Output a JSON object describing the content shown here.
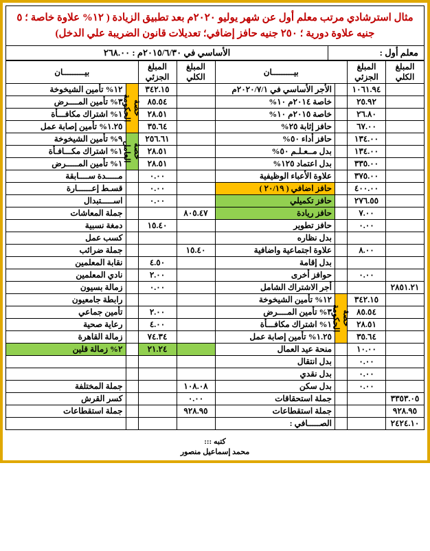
{
  "colors": {
    "frame": "#e0a800",
    "title_fg": "#c00000",
    "hl1": "#ffc000",
    "hl2": "#92d050"
  },
  "title": "مثال استرشادي مرتب معلم أول عن شهر يوليو ٢٠٢٠م بعد تطبيق الزيادة ( ١٢% علاوة خاصة ؛ ٥ جنيه علاوة دورية ؛ ٢٥٠ جنيه حافز إضافي؛ تعديلات قانون الضريبة علي الدخل)",
  "info": {
    "grade": "معلم أول :",
    "basic_label": "الأساسي في ٢٠١٥/٦/٣٠م : ٢٦٨.٠٠"
  },
  "headers": {
    "total": "المبلغ الكلي",
    "part": "المبلغ الجزئي",
    "desc": "بيـــــــــان"
  },
  "right_rows": [
    {
      "d": "الأجر الأساسي في ٢٠٢٠/٧/١م",
      "p": "١٠٦١.٩٤",
      "t": ""
    },
    {
      "d": "خاصة ٢٠١٤م ١٠%",
      "p": "٢٥.٩٢",
      "t": ""
    },
    {
      "d": "خاصة ٢٠١٥م ١٠%",
      "p": "٢٦.٨٠",
      "t": ""
    },
    {
      "d": "حافز إثابة ٢٥%",
      "p": "٦٧.٠٠",
      "t": ""
    },
    {
      "d": "حافز أداء ٥٠%",
      "p": "١٣٤.٠٠",
      "t": ""
    },
    {
      "d": "بدل مــعـلـم ٥٠%",
      "p": "١٣٤.٠٠",
      "t": ""
    },
    {
      "d": "بدل اعتماد ١٢٥%",
      "p": "٣٣٥.٠٠",
      "t": ""
    },
    {
      "d": "علاوة الأعباء الوظيفية",
      "p": "٣٧٥.٠٠",
      "t": ""
    },
    {
      "d": "حافز اضافي ( ٢٠/١٩ )",
      "p": "٤٠٠.٠٠",
      "t": "",
      "hl": "a"
    },
    {
      "d": "حافز تكميلي",
      "p": "٢٧٦.٥٥",
      "t": "",
      "hl": "b"
    },
    {
      "d": "حافز ريادة",
      "p": "٧.٠٠",
      "t": "",
      "hl": "b"
    },
    {
      "d": "حافز تطوير",
      "p": "٠.٠٠",
      "t": ""
    },
    {
      "d": "بدل نظاره",
      "p": "",
      "t": ""
    },
    {
      "d": "علاوة اجتماعية واضافية",
      "p": "٨.٠٠",
      "t": ""
    },
    {
      "d": "بدل إقامة",
      "p": "",
      "t": ""
    },
    {
      "d": "حوافز أخرى",
      "p": "٠.٠٠",
      "t": ""
    },
    {
      "d": "أجر الاشتراك الشامل",
      "p": "",
      "t": "٢٨٥١.٢١"
    },
    {
      "d": "١٢% تأمين الشيخوخة",
      "p": "٣٤٢.١٥",
      "t": "",
      "side": "a",
      "sideLabel": "حصة الحكومة",
      "sideSpan": 4
    },
    {
      "d": "٣% تأمين المــــرض",
      "p": "٨٥.٥٤",
      "t": ""
    },
    {
      "d": "١% اشتراك مكافـــأة",
      "p": "٢٨.٥١",
      "t": ""
    },
    {
      "d": "١.٢٥% تأمين إصابة عمل",
      "p": "٣٥.٦٤",
      "t": ""
    },
    {
      "d": "منحة عيد العمال",
      "p": "١٠.٠٠",
      "t": ""
    },
    {
      "d": "بدل انتقال",
      "p": "٠.٠٠",
      "t": ""
    },
    {
      "d": "بدل نقدي",
      "p": "٠.٠٠",
      "t": ""
    },
    {
      "d": "بدل سكن",
      "p": "٠.٠٠",
      "t": ""
    },
    {
      "d": "جملة استحقاقات",
      "p": "",
      "t": "٣٣٥٣.٠٥"
    },
    {
      "d": "جملة استقطاعات",
      "p": "",
      "t": "٩٢٨.٩٥"
    },
    {
      "d": "الصـــــافي :",
      "p": "",
      "t": "٢٤٢٤.١٠"
    }
  ],
  "left_rows": [
    {
      "d": "١٢% تأمين الشيخوخة",
      "p": "٣٤٢.١٥",
      "t": "",
      "side": "a",
      "sideLabel": "حصة الحكومة",
      "sideSpan": 4
    },
    {
      "d": "٣% تأمين المــــرض",
      "p": "٨٥.٥٤",
      "t": ""
    },
    {
      "d": "١% اشتراك مكافـــأة",
      "p": "٢٨.٥١",
      "t": ""
    },
    {
      "d": "١.٢٥% تأمين إصابة عمل",
      "p": "٣٥.٦٤",
      "t": ""
    },
    {
      "d": "٩% تأمين الشيخوخة",
      "p": "٢٥٦.٦١",
      "t": "",
      "side": "b",
      "sideLabel": "حصة العامل",
      "sideSpan": 3
    },
    {
      "d": "١% اشتراك مكـــافـأة",
      "p": "٢٨.٥١",
      "t": ""
    },
    {
      "d": "١% تأمين المـــــرض",
      "p": "٢٨.٥١",
      "t": ""
    },
    {
      "d": "مـــــدة ســــابقة",
      "p": "٠.٠٠",
      "t": ""
    },
    {
      "d": "قسـط إعــــــارة",
      "p": "٠.٠٠",
      "t": ""
    },
    {
      "d": "اســـــتبدال",
      "p": "٠.٠٠",
      "t": ""
    },
    {
      "d": "جملة المعاشات",
      "p": "",
      "t": "٨٠٥.٤٧"
    },
    {
      "d": "دمغة نسبية",
      "p": "١٥.٤٠",
      "t": ""
    },
    {
      "d": "كسب عمل",
      "p": "",
      "t": ""
    },
    {
      "d": "جملة ضرائب",
      "p": "",
      "t": "١٥.٤٠"
    },
    {
      "d": "نقابة المعلمين",
      "p": "٤.٥٠",
      "t": ""
    },
    {
      "d": "نادي المعلمين",
      "p": "٢.٠٠",
      "t": ""
    },
    {
      "d": "زمالة بسيون",
      "p": "٠.٠٠",
      "t": ""
    },
    {
      "d": "رابطة جامعيون",
      "p": "",
      "t": ""
    },
    {
      "d": "تأمين جماعي",
      "p": "٢.٠٠",
      "t": ""
    },
    {
      "d": "رعاية صحية",
      "p": "٤.٠٠",
      "t": ""
    },
    {
      "d": "زمالة القاهرة",
      "p": "٧٤.٣٤",
      "t": ""
    },
    {
      "d": "٢% زمالة قلين",
      "p": "٢١.٢٤",
      "t": "",
      "rowhl": "b"
    },
    {
      "d": "",
      "p": "",
      "t": ""
    },
    {
      "d": "",
      "p": "",
      "t": ""
    },
    {
      "d": "جملة المختلفة",
      "p": "",
      "t": "١٠٨.٠٨"
    },
    {
      "d": "كسر القرش",
      "p": "",
      "t": "٠.٠٠"
    },
    {
      "d": "جملة استقطاعات",
      "p": "",
      "t": "٩٢٨.٩٥"
    },
    {
      "d": "",
      "p": "",
      "t": ""
    }
  ],
  "footer": {
    "by": "كتبه :::",
    "name": "محمد إسماعيل منصور"
  }
}
